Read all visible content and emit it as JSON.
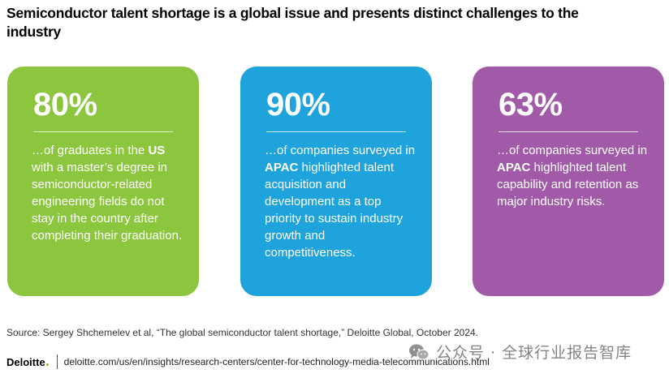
{
  "title": "Semiconductor talent shortage is a global issue and presents distinct challenges to the industry",
  "colors": {
    "green": "#8cc63f",
    "blue": "#1fa3dc",
    "purple": "#a05aa8"
  },
  "cards": [
    {
      "stat": "80%",
      "parts": [
        "…of graduates in the ",
        "US",
        " with a master’s degree in semiconductor-related engineering fields do not stay in the country after completing their graduation."
      ]
    },
    {
      "stat": "90%",
      "parts": [
        "…of companies surveyed in ",
        "APAC",
        " highlighted talent acquisition and development as a top priority to sustain industry growth and competitiveness."
      ]
    },
    {
      "stat": "63%",
      "parts": [
        "…of companies surveyed in ",
        "APAC",
        " highlighted talent capability and retention as major industry risks."
      ]
    }
  ],
  "source": "Source: Sergey Shchemelev et al, “The global semiconductor talent shortage,” Deloitte Global, October 2024.",
  "footer": {
    "logo": "Deloitte",
    "url": "deloitte.com/us/en/insights/research-centers/center-for-technology-media-telecommunications.html"
  },
  "watermark": {
    "icon": "wechat-icon",
    "text": "公众号 · 全球行业报告智库"
  }
}
